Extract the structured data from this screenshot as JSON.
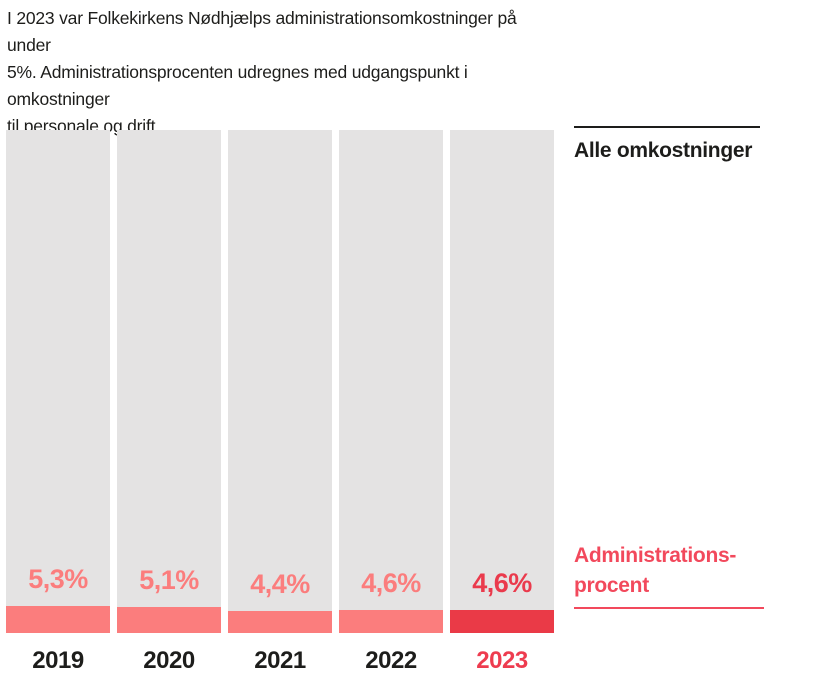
{
  "intro": {
    "lines": [
      "I 2023 var Folkekirkens Nødhjælps administrationsomkostninger på under",
      "5%. Administrationsprocenten udregnes med udgangspunkt i omkostninger",
      "til personale og drift."
    ]
  },
  "legend": {
    "total_label": "Alle omkostninger",
    "admin_label": [
      "Administrations-",
      "procent"
    ]
  },
  "chart_data": {
    "type": "bar",
    "subtype": "stacked-percentage-columns",
    "categories": [
      "2019",
      "2020",
      "2021",
      "2022",
      "2023"
    ],
    "series": [
      {
        "name": "Administrationsprocent",
        "values": [
          5.3,
          5.1,
          4.4,
          4.6,
          4.6
        ]
      },
      {
        "name": "Alle omkostninger",
        "values": [
          100,
          100,
          100,
          100,
          100
        ]
      }
    ],
    "value_labels": [
      "5,3%",
      "5,1%",
      "4,4%",
      "4,6%",
      "4,6%"
    ],
    "highlight_index": 4,
    "ylim": [
      0,
      100
    ],
    "grid": false,
    "axes_shown": false,
    "legend_position": "right",
    "legend_entries": [
      "Alle omkostninger",
      "Administrations-procent"
    ]
  },
  "colors": {
    "bar_track": "#e4e3e3",
    "admin_fill": "#fb7d7d",
    "admin_fill_highlight": "#ea3a47",
    "highlight_text": "#ee3c4f",
    "legend_red": "#f2495c",
    "text_black": "#1d1d1b",
    "background": "#ffffff"
  }
}
